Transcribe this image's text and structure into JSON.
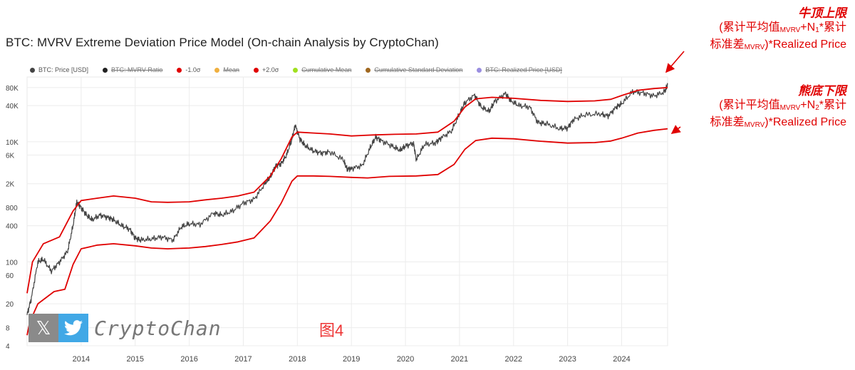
{
  "title": "BTC: MVRV Extreme Deviation Price Model (On-chain Analysis by CryptoChan)",
  "legend": [
    {
      "label": "BTC: Price [USD]",
      "color": "#444444",
      "active": true
    },
    {
      "label": "BTC: MVRV Ratio",
      "color": "#222222",
      "active": false
    },
    {
      "label": "-1.0σ",
      "color": "#e00000",
      "active": true
    },
    {
      "label": "Mean",
      "color": "#f0b040",
      "active": false
    },
    {
      "label": "+2.0σ",
      "color": "#e00000",
      "active": true
    },
    {
      "label": "Cumulative Mean",
      "color": "#a0e020",
      "active": false
    },
    {
      "label": "Cumulative Standard Deviation",
      "color": "#a06820",
      "active": false
    },
    {
      "label": "BTC: Realized Price [USD]",
      "color": "#9a8ee0",
      "active": false
    }
  ],
  "annotations": {
    "top": {
      "title": "牛顶上限",
      "line1_a": "(累计平均值",
      "line1_sub": "MVRV",
      "line1_b": "+N",
      "line1_sub2": "1",
      "line1_c": "*累计",
      "line2_a": "标准差",
      "line2_sub": "MVRV",
      "line2_b": ")*Realized Price"
    },
    "bottom": {
      "title": "熊底下限",
      "line1_a": "(累计平均值",
      "line1_sub": "MVRV",
      "line1_b": "+N",
      "line1_sub2": "2",
      "line1_c": "*累计",
      "line2_a": "标准差",
      "line2_sub": "MVRV",
      "line2_b": ")*Realized Price"
    }
  },
  "watermark": {
    "x_glyph": "𝕏",
    "name": "CryptoChan"
  },
  "figure_label": "图4",
  "chart_data": {
    "type": "line",
    "y_scale": "log",
    "ylim": [
      4,
      120000
    ],
    "xlim": [
      2013.0,
      2024.85
    ],
    "y_ticks": [
      4,
      8,
      20,
      60,
      100,
      400,
      800,
      2000,
      6000,
      10000,
      40000,
      80000
    ],
    "y_tick_labels": [
      "4",
      "8",
      "20",
      "60",
      "100",
      "400",
      "800",
      "2K",
      "6K",
      "10K",
      "40K",
      "80K"
    ],
    "x_ticks": [
      2014,
      2015,
      2016,
      2017,
      2018,
      2019,
      2020,
      2021,
      2022,
      2023,
      2024
    ],
    "x_tick_labels": [
      "2014",
      "2015",
      "2016",
      "2017",
      "2018",
      "2019",
      "2020",
      "2021",
      "2022",
      "2023",
      "2024"
    ],
    "grid": true,
    "series": [
      {
        "name": "BTC: Price [USD]",
        "color": "#444444",
        "points": [
          [
            2013.0,
            13
          ],
          [
            2013.08,
            25
          ],
          [
            2013.2,
            100
          ],
          [
            2013.3,
            110
          ],
          [
            2013.45,
            70
          ],
          [
            2013.6,
            100
          ],
          [
            2013.75,
            150
          ],
          [
            2013.85,
            400
          ],
          [
            2013.92,
            1000
          ],
          [
            2014.0,
            800
          ],
          [
            2014.1,
            600
          ],
          [
            2014.2,
            500
          ],
          [
            2014.35,
            600
          ],
          [
            2014.5,
            550
          ],
          [
            2014.6,
            500
          ],
          [
            2014.75,
            400
          ],
          [
            2014.9,
            350
          ],
          [
            2015.0,
            250
          ],
          [
            2015.1,
            230
          ],
          [
            2015.3,
            240
          ],
          [
            2015.5,
            260
          ],
          [
            2015.7,
            230
          ],
          [
            2015.85,
            380
          ],
          [
            2016.0,
            430
          ],
          [
            2016.2,
            420
          ],
          [
            2016.45,
            650
          ],
          [
            2016.6,
            600
          ],
          [
            2016.8,
            700
          ],
          [
            2017.0,
            950
          ],
          [
            2017.2,
            1100
          ],
          [
            2017.4,
            2000
          ],
          [
            2017.5,
            2600
          ],
          [
            2017.6,
            4000
          ],
          [
            2017.7,
            4300
          ],
          [
            2017.8,
            6000
          ],
          [
            2017.9,
            11000
          ],
          [
            2017.96,
            19000
          ],
          [
            2018.05,
            11000
          ],
          [
            2018.15,
            8500
          ],
          [
            2018.3,
            7000
          ],
          [
            2018.45,
            6500
          ],
          [
            2018.6,
            6800
          ],
          [
            2018.85,
            5000
          ],
          [
            2018.92,
            3500
          ],
          [
            2019.0,
            3600
          ],
          [
            2019.2,
            4000
          ],
          [
            2019.35,
            8000
          ],
          [
            2019.45,
            12000
          ],
          [
            2019.55,
            10500
          ],
          [
            2019.75,
            8500
          ],
          [
            2019.9,
            7200
          ],
          [
            2020.0,
            8500
          ],
          [
            2020.15,
            9500
          ],
          [
            2020.2,
            5000
          ],
          [
            2020.35,
            9000
          ],
          [
            2020.55,
            9500
          ],
          [
            2020.65,
            11500
          ],
          [
            2020.85,
            15000
          ],
          [
            2021.0,
            29000
          ],
          [
            2021.1,
            45000
          ],
          [
            2021.28,
            60000
          ],
          [
            2021.4,
            38000
          ],
          [
            2021.55,
            32000
          ],
          [
            2021.65,
            47000
          ],
          [
            2021.85,
            64000
          ],
          [
            2021.95,
            48000
          ],
          [
            2022.1,
            40000
          ],
          [
            2022.3,
            38000
          ],
          [
            2022.45,
            21000
          ],
          [
            2022.6,
            20000
          ],
          [
            2022.85,
            16500
          ],
          [
            2023.0,
            17000
          ],
          [
            2023.1,
            23000
          ],
          [
            2023.3,
            28000
          ],
          [
            2023.6,
            29000
          ],
          [
            2023.75,
            27000
          ],
          [
            2023.9,
            38000
          ],
          [
            2024.0,
            43000
          ],
          [
            2024.2,
            68000
          ],
          [
            2024.4,
            65000
          ],
          [
            2024.6,
            58000
          ],
          [
            2024.8,
            68000
          ],
          [
            2024.85,
            90000
          ]
        ]
      },
      {
        "name": "+2.0σ",
        "color": "#e00000",
        "points": [
          [
            2013.0,
            30
          ],
          [
            2013.1,
            100
          ],
          [
            2013.3,
            200
          ],
          [
            2013.6,
            260
          ],
          [
            2013.85,
            700
          ],
          [
            2014.0,
            1050
          ],
          [
            2014.3,
            1150
          ],
          [
            2014.6,
            1250
          ],
          [
            2015.0,
            1150
          ],
          [
            2015.3,
            1000
          ],
          [
            2015.6,
            980
          ],
          [
            2016.0,
            1000
          ],
          [
            2016.3,
            1080
          ],
          [
            2016.6,
            1150
          ],
          [
            2016.9,
            1250
          ],
          [
            2017.2,
            1450
          ],
          [
            2017.5,
            2700
          ],
          [
            2017.7,
            5200
          ],
          [
            2017.9,
            12000
          ],
          [
            2018.0,
            14500
          ],
          [
            2018.3,
            14000
          ],
          [
            2018.6,
            13500
          ],
          [
            2019.0,
            12500
          ],
          [
            2019.4,
            13000
          ],
          [
            2019.8,
            13300
          ],
          [
            2020.2,
            13500
          ],
          [
            2020.6,
            14500
          ],
          [
            2020.9,
            22000
          ],
          [
            2021.1,
            38000
          ],
          [
            2021.3,
            52000
          ],
          [
            2021.6,
            55000
          ],
          [
            2022.0,
            53000
          ],
          [
            2022.5,
            49000
          ],
          [
            2023.0,
            47000
          ],
          [
            2023.5,
            48000
          ],
          [
            2023.8,
            51000
          ],
          [
            2024.0,
            59000
          ],
          [
            2024.3,
            72000
          ],
          [
            2024.6,
            77000
          ],
          [
            2024.85,
            80000
          ]
        ]
      },
      {
        "name": "-1.0σ",
        "color": "#e00000",
        "points": [
          [
            2013.0,
            6
          ],
          [
            2013.05,
            10
          ],
          [
            2013.2,
            20
          ],
          [
            2013.5,
            32
          ],
          [
            2013.7,
            35
          ],
          [
            2013.85,
            90
          ],
          [
            2014.0,
            165
          ],
          [
            2014.3,
            190
          ],
          [
            2014.6,
            200
          ],
          [
            2015.0,
            185
          ],
          [
            2015.3,
            170
          ],
          [
            2015.6,
            165
          ],
          [
            2016.0,
            170
          ],
          [
            2016.3,
            180
          ],
          [
            2016.6,
            195
          ],
          [
            2016.9,
            215
          ],
          [
            2017.2,
            250
          ],
          [
            2017.5,
            480
          ],
          [
            2017.7,
            950
          ],
          [
            2017.9,
            2200
          ],
          [
            2018.0,
            2700
          ],
          [
            2018.3,
            2700
          ],
          [
            2018.6,
            2650
          ],
          [
            2019.0,
            2550
          ],
          [
            2019.3,
            2500
          ],
          [
            2019.7,
            2650
          ],
          [
            2020.2,
            2700
          ],
          [
            2020.6,
            2850
          ],
          [
            2020.9,
            4200
          ],
          [
            2021.1,
            7500
          ],
          [
            2021.3,
            10500
          ],
          [
            2021.6,
            11500
          ],
          [
            2022.0,
            11200
          ],
          [
            2022.5,
            10200
          ],
          [
            2023.0,
            9500
          ],
          [
            2023.5,
            9700
          ],
          [
            2023.8,
            10300
          ],
          [
            2024.0,
            11500
          ],
          [
            2024.3,
            14000
          ],
          [
            2024.6,
            15500
          ],
          [
            2024.85,
            16500
          ]
        ]
      }
    ]
  }
}
